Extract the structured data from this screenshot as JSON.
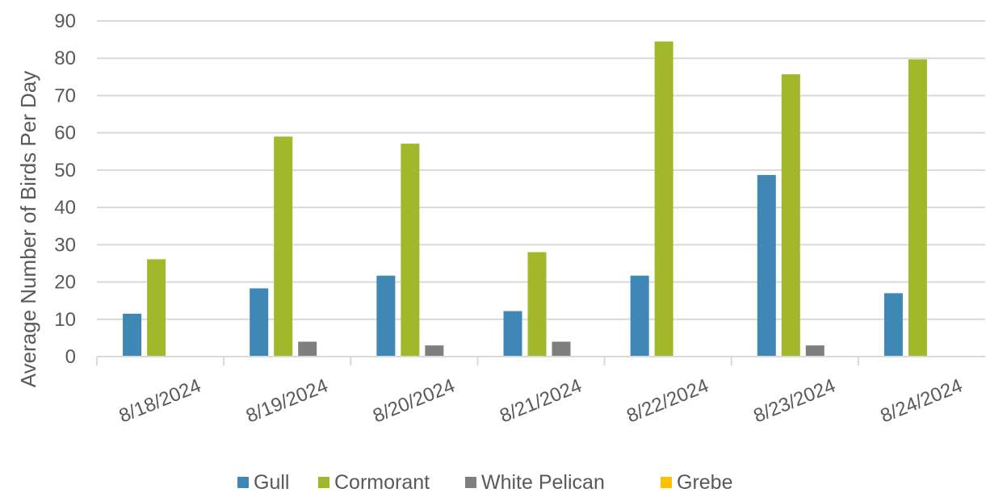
{
  "chart_data": {
    "type": "bar",
    "title": "",
    "xlabel": "",
    "ylabel": "Average Number of Birds Per Day",
    "ylim": [
      0,
      90
    ],
    "yticks": [
      0,
      10,
      20,
      30,
      40,
      50,
      60,
      70,
      80,
      90
    ],
    "grid": true,
    "legend_position": "bottom",
    "categories": [
      "8/18/2024",
      "8/19/2024",
      "8/20/2024",
      "8/21/2024",
      "8/22/2024",
      "8/23/2024",
      "8/24/2024"
    ],
    "series": [
      {
        "name": "Gull",
        "color": "#3f87b5",
        "values": [
          11.5,
          18.3,
          21.7,
          12.2,
          21.7,
          48.7,
          17
        ]
      },
      {
        "name": "Cormorant",
        "color": "#a2b82a",
        "values": [
          26.1,
          59,
          57.1,
          28,
          84.5,
          75.7,
          79.7
        ]
      },
      {
        "name": "White Pelican",
        "color": "#7f7f7f",
        "values": [
          0,
          4,
          3,
          4,
          0,
          3,
          0
        ]
      },
      {
        "name": "Grebe",
        "color": "#ffc000",
        "values": [
          0,
          0,
          0,
          0,
          0,
          0,
          0
        ]
      }
    ]
  }
}
